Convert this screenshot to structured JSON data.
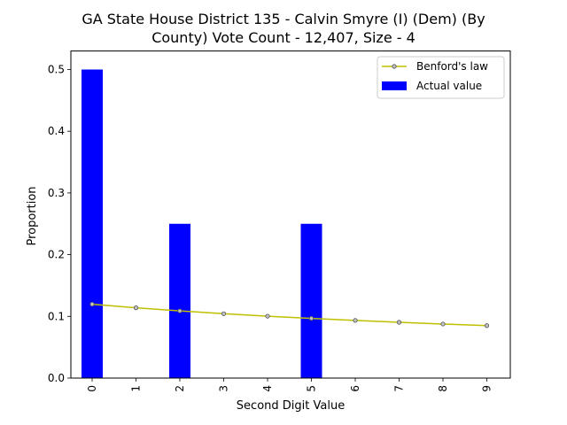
{
  "chart_data": {
    "type": "bar",
    "title_lines": [
      "GA State House District 135 - Calvin Smyre (I) (Dem) (By",
      "County) Vote Count - 12,407, Size - 4"
    ],
    "xlabel": "Second Digit Value",
    "ylabel": "Proportion",
    "categories": [
      "0",
      "1",
      "2",
      "3",
      "4",
      "5",
      "6",
      "7",
      "8",
      "9"
    ],
    "ylim": [
      0,
      0.53
    ],
    "yticks": [
      "0.0",
      "0.1",
      "0.2",
      "0.3",
      "0.4",
      "0.5"
    ],
    "grid": false,
    "legend_position": "top-right",
    "series": [
      {
        "name": "Benford's law",
        "kind": "line",
        "color": "#bfbf00",
        "marker_fill": "#c0c0c0",
        "values": [
          0.1197,
          0.1139,
          0.1088,
          0.1043,
          0.1003,
          0.0967,
          0.0934,
          0.0904,
          0.0876,
          0.085
        ]
      },
      {
        "name": "Actual value",
        "kind": "bar",
        "color": "#0000ff",
        "values": [
          0.5,
          0,
          0.25,
          0,
          0,
          0.25,
          0,
          0,
          0,
          0
        ]
      }
    ]
  }
}
